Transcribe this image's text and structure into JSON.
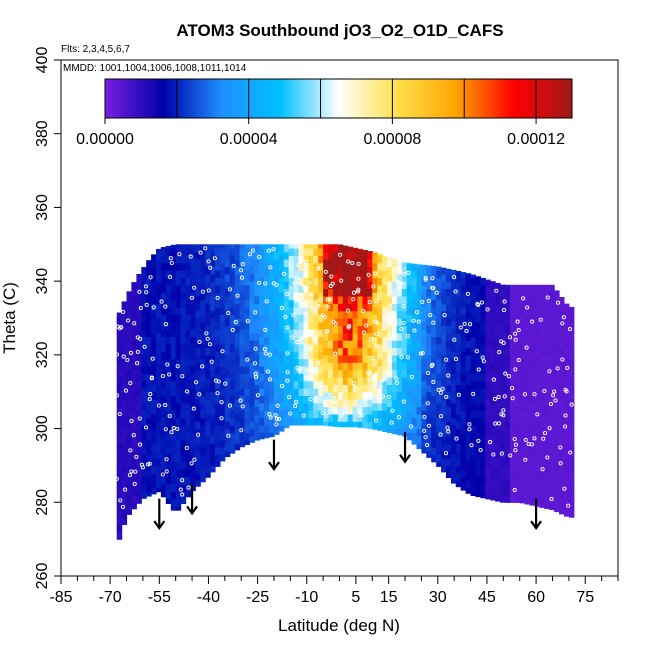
{
  "chart_data": {
    "type": "heatmap",
    "title": "ATOM3 Southbound jO3_O2_O1D_CAFS",
    "subtitle_flights": "Flts: 2,3,4,5,6,7",
    "subtitle_dates": "MMDD: 1001,1004,1006,1008,1011,1014",
    "xlabel": "Latitude (deg N)",
    "ylabel": "Theta (C)",
    "xlim": [
      -85,
      85
    ],
    "ylim": [
      260,
      400
    ],
    "x_tick_labels": [
      "-85",
      "-70",
      "-55",
      "-40",
      "-25",
      "-10",
      "5",
      "15",
      "30",
      "45",
      "60",
      "75"
    ],
    "x_ticks": [
      -85,
      -70,
      -55,
      -40,
      -25,
      -10,
      5,
      15,
      30,
      45,
      60,
      75
    ],
    "y_tick_labels": [
      "260",
      "280",
      "300",
      "320",
      "340",
      "360",
      "380",
      "400"
    ],
    "y_ticks": [
      260,
      280,
      300,
      320,
      340,
      360,
      380,
      400
    ],
    "colorbar": {
      "min": 0,
      "max": 0.00013,
      "tick_labels": [
        "0.00000",
        "0.00004",
        "0.00008",
        "0.00012"
      ],
      "tick_values": [
        0,
        4e-05,
        8e-05,
        0.00012
      ],
      "colors": [
        "#7a1fe0",
        "#0000aa",
        "#1e90ff",
        "#00bfff",
        "#ffffff",
        "#ffe14d",
        "#ffa500",
        "#ff0000",
        "#a01818"
      ]
    },
    "arrows_at_latitude": [
      {
        "lat": -55,
        "theta": 280
      },
      {
        "lat": -45,
        "theta": 284
      },
      {
        "lat": -20,
        "theta": 296
      },
      {
        "lat": 20,
        "theta": 298
      },
      {
        "lat": 60,
        "theta": 280
      }
    ],
    "field_lower_boundary": [
      [
        -68,
        268
      ],
      [
        -65,
        276
      ],
      [
        -60,
        281
      ],
      [
        -55,
        283
      ],
      [
        -50,
        277
      ],
      [
        -45,
        283
      ],
      [
        -40,
        287
      ],
      [
        -35,
        292
      ],
      [
        -30,
        295
      ],
      [
        -25,
        297
      ],
      [
        -20,
        298
      ],
      [
        -15,
        301
      ],
      [
        -10,
        301
      ],
      [
        -5,
        301
      ],
      [
        0,
        300.5
      ],
      [
        5,
        300.5
      ],
      [
        10,
        300
      ],
      [
        15,
        299
      ],
      [
        20,
        298
      ],
      [
        25,
        294
      ],
      [
        30,
        290
      ],
      [
        35,
        285
      ],
      [
        40,
        282
      ],
      [
        45,
        281
      ],
      [
        50,
        280
      ],
      [
        55,
        280
      ],
      [
        60,
        279
      ],
      [
        65,
        278
      ],
      [
        70,
        276
      ]
    ],
    "field_upper_boundary": [
      [
        -68,
        330
      ],
      [
        -65,
        336
      ],
      [
        -62,
        341
      ],
      [
        -58,
        346
      ],
      [
        -55,
        349
      ],
      [
        -50,
        350
      ],
      [
        -40,
        350
      ],
      [
        -30,
        350
      ],
      [
        -20,
        350
      ],
      [
        -10,
        350
      ],
      [
        0,
        350
      ],
      [
        10,
        348
      ],
      [
        20,
        345
      ],
      [
        30,
        344
      ],
      [
        40,
        342
      ],
      [
        50,
        339
      ],
      [
        60,
        339
      ],
      [
        65,
        339
      ],
      [
        70,
        333
      ]
    ]
  }
}
